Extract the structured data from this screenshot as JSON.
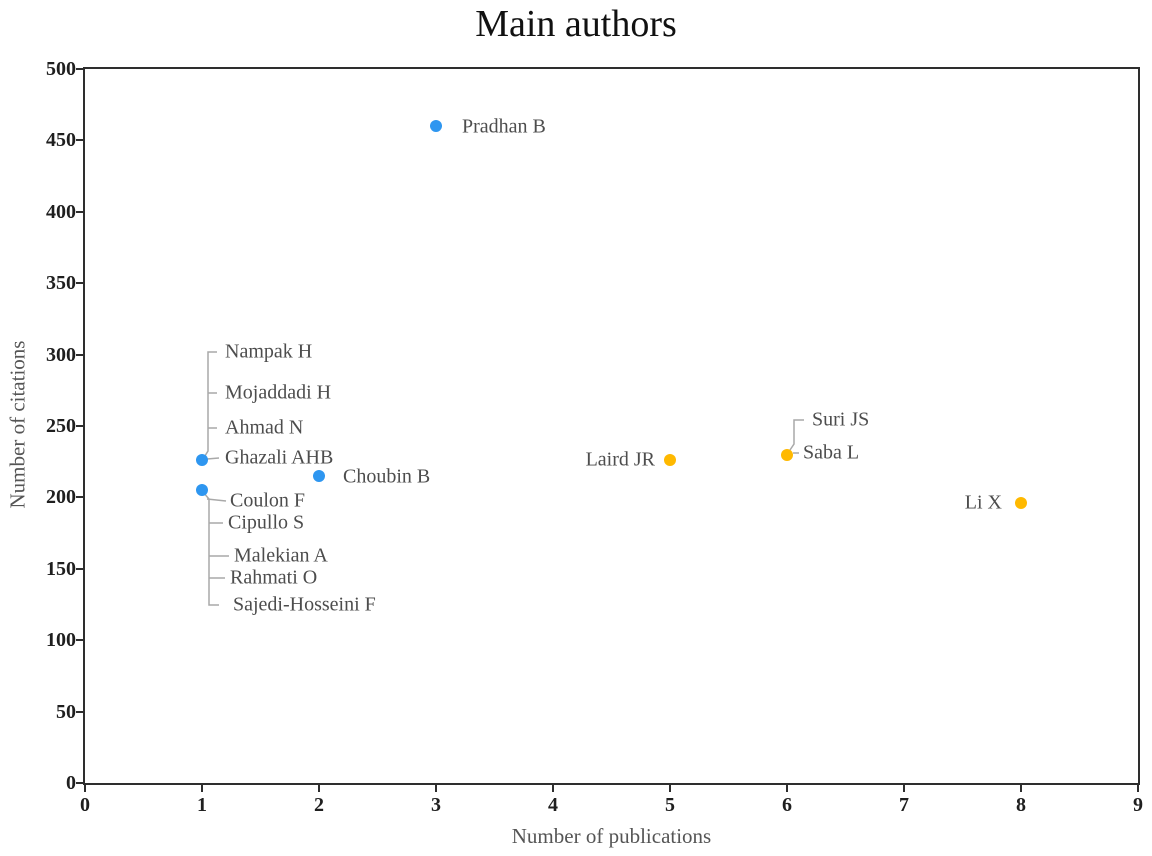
{
  "chart_data": {
    "type": "scatter",
    "title": "Main authors",
    "xlabel": "Number of publications",
    "ylabel": "Number of citations",
    "xlim": [
      0,
      9
    ],
    "ylim": [
      0,
      500
    ],
    "xticks": [
      0,
      1,
      2,
      3,
      4,
      5,
      6,
      7,
      8,
      9
    ],
    "yticks": [
      0,
      50,
      100,
      150,
      200,
      250,
      300,
      350,
      400,
      450,
      500
    ],
    "grid": false,
    "legend": "none",
    "colors": {
      "blue": "#2E96F0",
      "orange": "#FFB900"
    },
    "points": [
      {
        "x": 3,
        "y": 460,
        "series": "blue",
        "labels": [
          "Pradhan B"
        ]
      },
      {
        "x": 1,
        "y": 226,
        "series": "blue",
        "labels": [
          "Nampak H",
          "Mojaddadi H",
          "Ahmad N",
          "Ghazali AHB"
        ]
      },
      {
        "x": 1,
        "y": 205,
        "series": "blue",
        "labels": [
          "Coulon F",
          "Cipullo S",
          "Malekian A",
          "Rahmati O",
          "Sajedi-Hosseini F"
        ]
      },
      {
        "x": 2,
        "y": 215,
        "series": "blue",
        "labels": [
          "Choubin B"
        ]
      },
      {
        "x": 5,
        "y": 226,
        "series": "orange",
        "labels": [
          "Laird JR"
        ]
      },
      {
        "x": 6,
        "y": 230,
        "series": "orange",
        "labels": [
          "Suri JS",
          "Saba L"
        ]
      },
      {
        "x": 8,
        "y": 196,
        "series": "orange",
        "labels": [
          "Li X"
        ]
      }
    ]
  }
}
